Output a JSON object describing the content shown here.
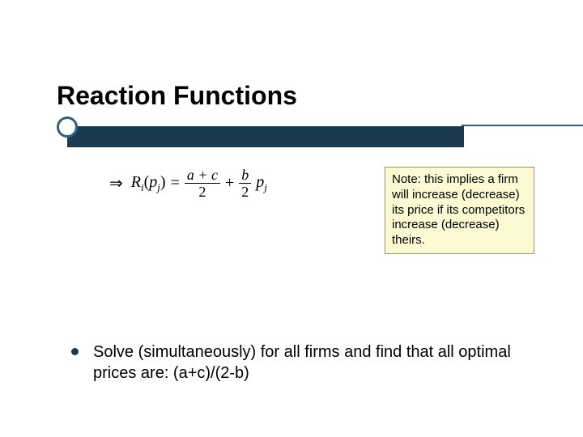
{
  "slide": {
    "title": "Reaction Functions",
    "colors": {
      "bar": "#1a3a52",
      "line": "#335d7e",
      "note_bg": "#fbfad2",
      "note_border": "#999966",
      "text": "#000000",
      "background": "#ffffff"
    }
  },
  "equation": {
    "arrow": "⇒",
    "lhs_func": "R",
    "lhs_sub": "i",
    "lhs_arg_var": "p",
    "lhs_arg_sub": "j",
    "eq": "=",
    "frac1_num": "a + c",
    "frac1_den": "2",
    "plus": "+",
    "frac2_num": "b",
    "frac2_den": "2",
    "rhs_var": "p",
    "rhs_sub": "j"
  },
  "note": {
    "text": "Note: this implies a firm will increase (decrease) its price if its competitors increase (decrease) theirs."
  },
  "bullet": {
    "text": "Solve (simultaneously) for all firms and find that all optimal prices are: (a+c)/(2-b)"
  }
}
